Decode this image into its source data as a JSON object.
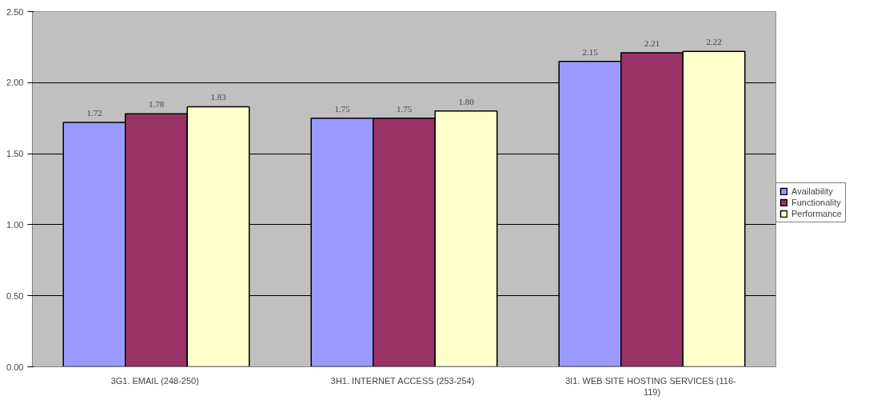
{
  "chart_data": {
    "type": "bar",
    "categories": [
      "3G1. EMAIL  (248-250)",
      "3H1. INTERNET ACCESS  (253-254)",
      "3I1. WEB SITE HOSTING SERVICES  (116-119)"
    ],
    "series": [
      {
        "name": "Availability",
        "color": "#9999ff",
        "values": [
          1.72,
          1.75,
          2.15
        ],
        "value_labels": [
          "1.72",
          "1.75",
          "2.15"
        ]
      },
      {
        "name": "Functionality",
        "color": "#993366",
        "values": [
          1.78,
          1.75,
          2.21
        ],
        "value_labels": [
          "1.78",
          "1.75",
          "2.21"
        ]
      },
      {
        "name": "Performance",
        "color": "#ffffcc",
        "values": [
          1.83,
          1.8,
          2.22
        ],
        "value_labels": [
          "1.83",
          "1.80",
          "2.22"
        ]
      }
    ],
    "ylim": [
      0,
      2.5
    ],
    "yticks": [
      {
        "value": 0,
        "label": "0.00"
      },
      {
        "value": 0.5,
        "label": "0.50"
      },
      {
        "value": 1,
        "label": "1.00"
      },
      {
        "value": 1.5,
        "label": "1.50"
      },
      {
        "value": 2,
        "label": "2.00"
      },
      {
        "value": 2.5,
        "label": "2.50"
      }
    ],
    "grid": "y",
    "legend": "right"
  }
}
